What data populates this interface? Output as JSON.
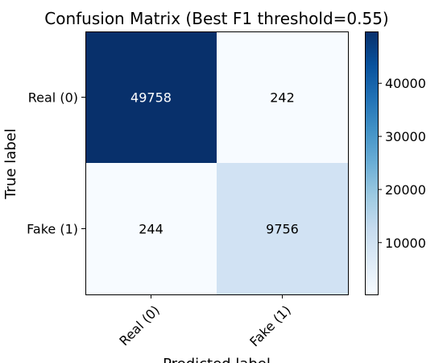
{
  "chart_data": {
    "type": "heatmap",
    "title": "Confusion Matrix (Best F1 threshold=0.55)",
    "xlabel": "Predicted label",
    "ylabel": "True label",
    "x_categories": [
      "Real (0)",
      "Fake (1)"
    ],
    "y_categories": [
      "Real (0)",
      "Fake (1)"
    ],
    "values": [
      [
        49758,
        242
      ],
      [
        244,
        9756
      ]
    ],
    "colormap": "Blues",
    "color_range": [
      242,
      49758
    ],
    "colorbar_ticks": [
      10000,
      20000,
      30000,
      40000
    ],
    "colorbar_tick_labels": [
      "10000",
      "20000",
      "30000",
      "40000"
    ],
    "grid": false
  }
}
